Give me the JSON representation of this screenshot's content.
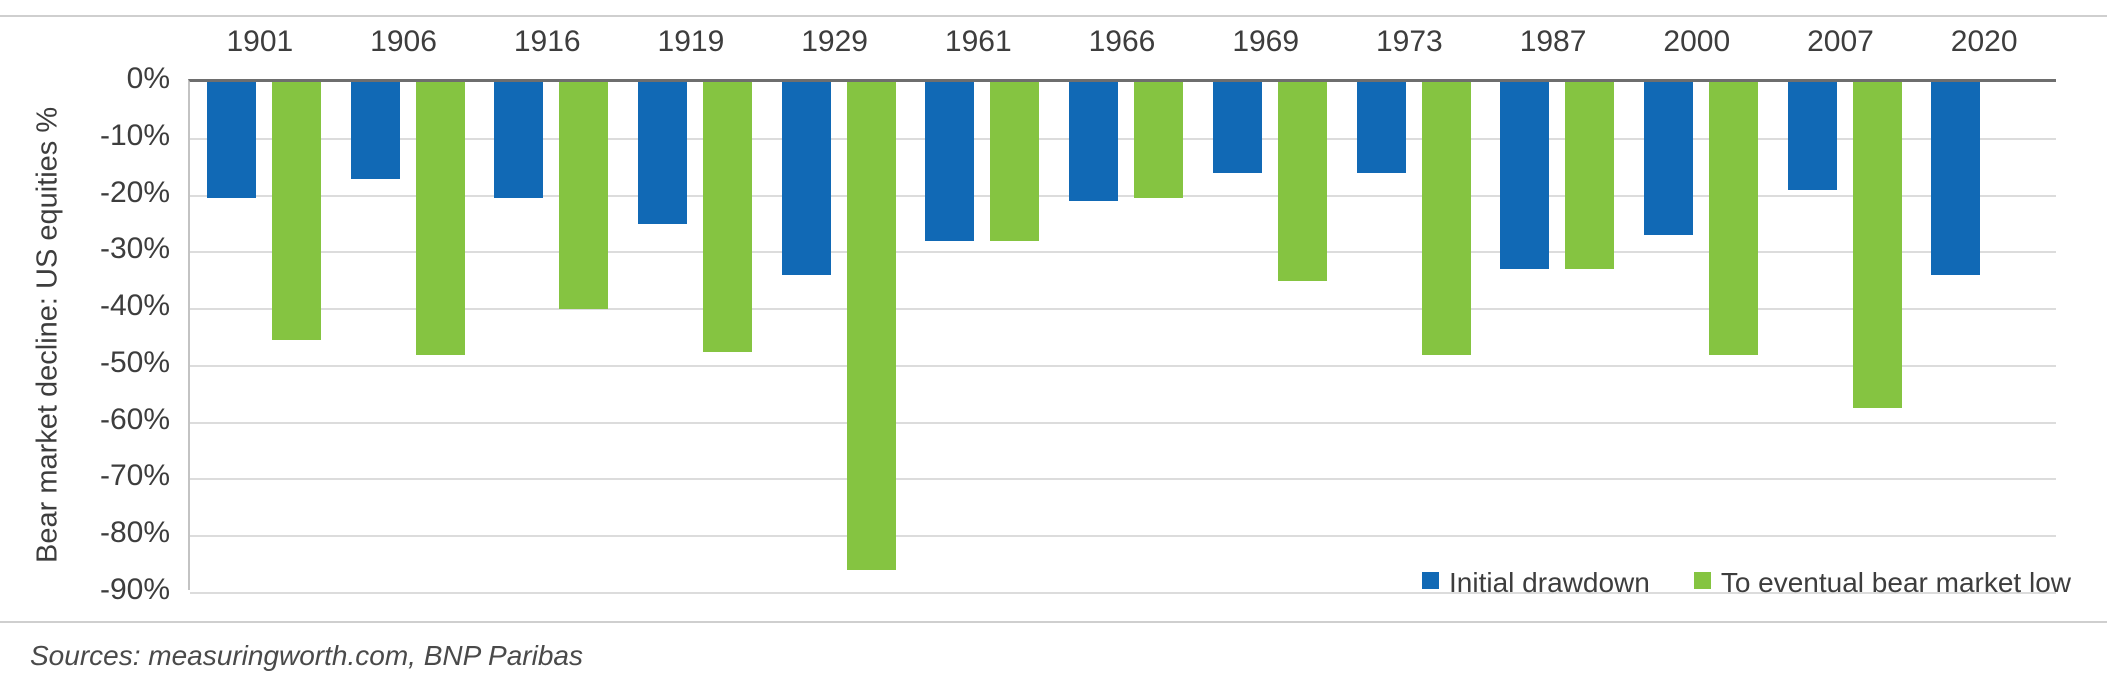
{
  "chart_data": {
    "type": "bar",
    "title": "",
    "categories": [
      "1901",
      "1906",
      "1916",
      "1919",
      "1929",
      "1961",
      "1966",
      "1969",
      "1973",
      "1987",
      "2000",
      "2007",
      "2020"
    ],
    "series": [
      {
        "name": "Initial drawdown",
        "color": "#1169b5",
        "values": [
          -20.5,
          -17,
          -20.5,
          -25,
          -34,
          -28,
          -21,
          -16,
          -16,
          -33,
          -27,
          -19,
          -34
        ]
      },
      {
        "name": "To eventual bear market low",
        "color": "#85c441",
        "values": [
          -45.5,
          -48,
          -40,
          -47.5,
          -86,
          -28,
          -20.5,
          -35,
          -48,
          -33,
          -48,
          -57.5,
          null
        ]
      }
    ],
    "xlabel": "",
    "ylabel": "Bear market decline: US equities %",
    "ylim": [
      -90,
      0
    ],
    "ytick_step": 10,
    "grid": true,
    "legend_position": "inside-bottom-right"
  },
  "y_axis": {
    "title": "Bear market decline: US equities %",
    "ticks": [
      "0%",
      "-10%",
      "-20%",
      "-30%",
      "-40%",
      "-50%",
      "-60%",
      "-70%",
      "-80%",
      "-90%"
    ]
  },
  "legend": {
    "items": [
      {
        "label": "Initial drawdown",
        "color": "#1169b5"
      },
      {
        "label": "To eventual bear market low",
        "color": "#85c441"
      }
    ]
  },
  "footer": {
    "source_text": "Sources: measuringworth.com, BNP Paribas"
  },
  "colors": {
    "initial_drawdown": "#1169b5",
    "eventual_low": "#85c441",
    "gridline": "#dcdcdc",
    "zero_axis": "#6e6e6e"
  }
}
